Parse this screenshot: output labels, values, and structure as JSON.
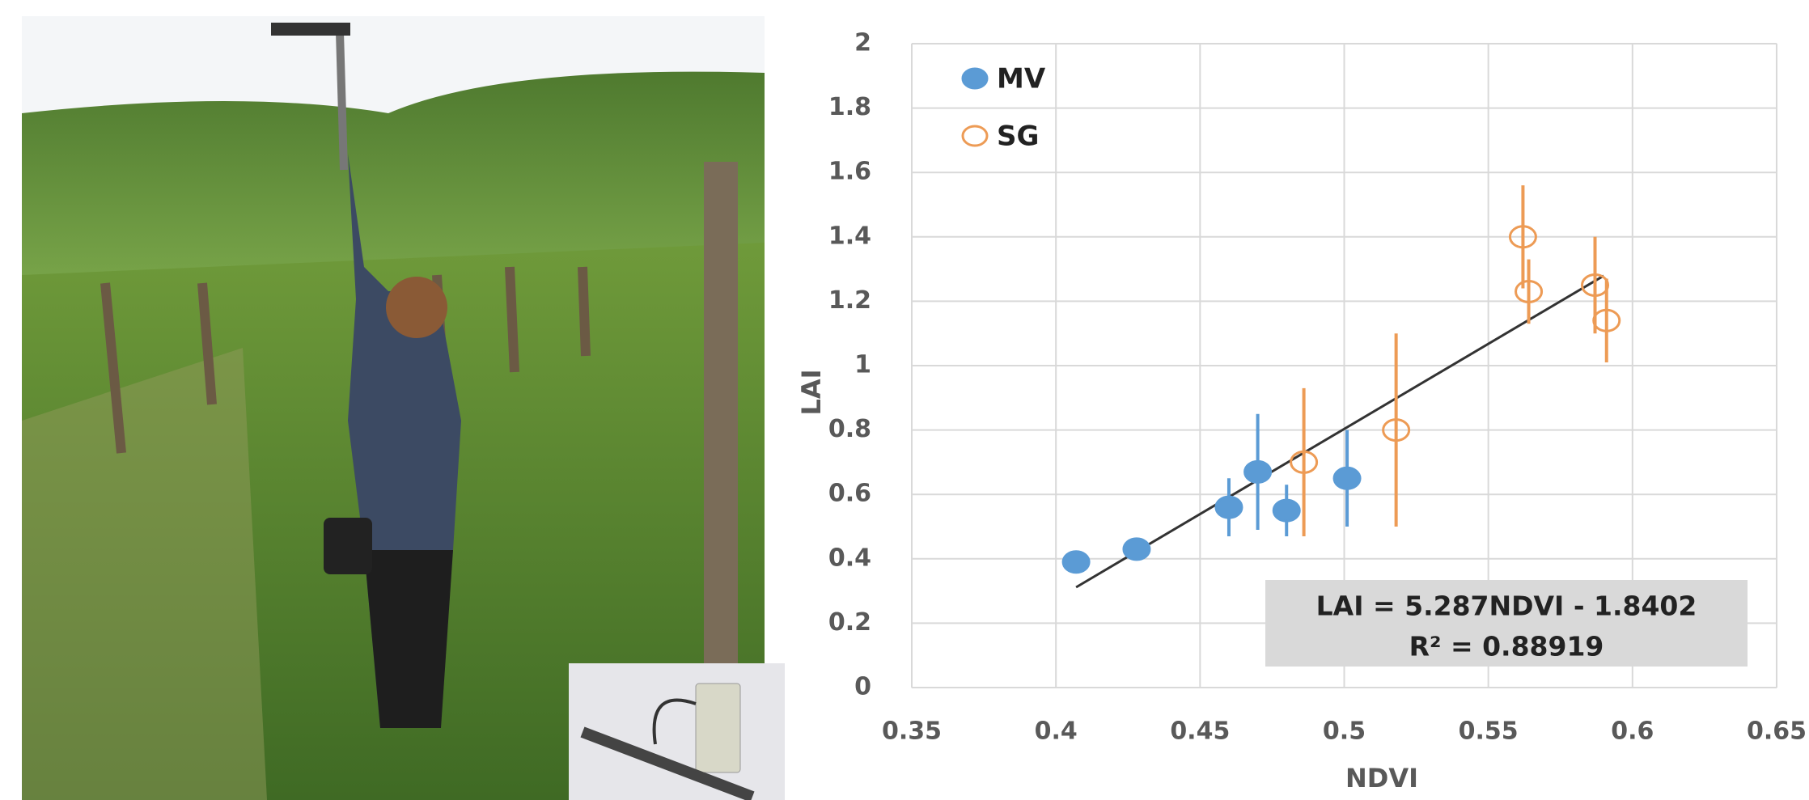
{
  "chart_data": {
    "type": "scatter",
    "x_label": "NDVI",
    "y_label": "LAI",
    "xlim": [
      0.35,
      0.65
    ],
    "xticks": [
      0.35,
      0.4,
      0.45,
      0.5,
      0.55,
      0.6,
      0.65
    ],
    "ylim": [
      0,
      2
    ],
    "yticks": [
      0,
      0.2,
      0.4,
      0.6,
      0.8,
      1,
      1.2,
      1.4,
      1.6,
      1.8,
      2
    ],
    "grid": true,
    "legend": "top-left",
    "series": [
      {
        "name": "MV",
        "color": "#5b9bd5",
        "marker": "filled",
        "x": [
          0.407,
          0.428,
          0.46,
          0.47,
          0.48,
          0.501
        ],
        "values": [
          0.39,
          0.43,
          0.56,
          0.67,
          0.55,
          0.65
        ],
        "errors": [
          0,
          0,
          0.09,
          0.18,
          0.08,
          0.15
        ]
      },
      {
        "name": "SG",
        "color": "#ed9b55",
        "marker": "open",
        "x": [
          0.486,
          0.518,
          0.562,
          0.564,
          0.587,
          0.591
        ],
        "values": [
          0.7,
          0.8,
          1.4,
          1.23,
          1.25,
          1.14
        ],
        "errors": [
          0.23,
          0.3,
          0.16,
          0.1,
          0.15,
          0.13
        ]
      }
    ],
    "trendline": {
      "slope": 5.287,
      "intercept": -1.8402,
      "x": [
        0.407,
        0.59
      ],
      "color": "#333333"
    },
    "annotation": [
      "LAI = 5.287NDVI - 1.8402",
      "R² = 0.88919"
    ]
  }
}
